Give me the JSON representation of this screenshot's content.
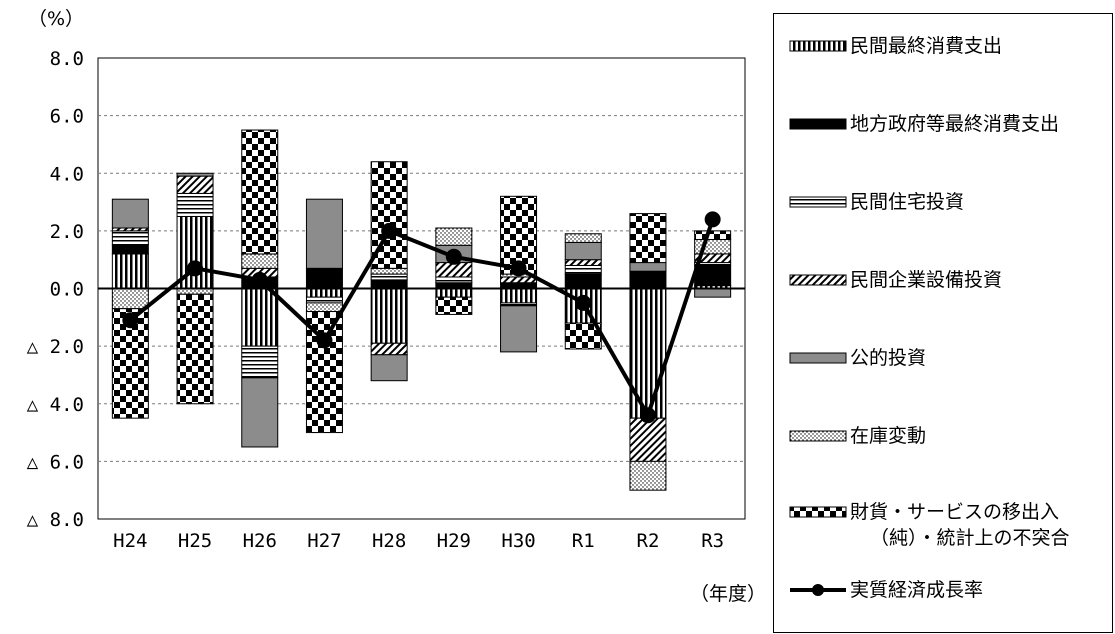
{
  "chart_data": {
    "type": "bar",
    "stacked": true,
    "with_line": true,
    "y_unit": "（%）",
    "x_unit": "（年度）",
    "ylim": [
      -8.0,
      8.0
    ],
    "yticks": [
      {
        "value": 8.0,
        "label": "8.0"
      },
      {
        "value": 6.0,
        "label": "6.0"
      },
      {
        "value": 4.0,
        "label": "4.0"
      },
      {
        "value": 2.0,
        "label": "2.0"
      },
      {
        "value": 0.0,
        "label": "0.0"
      },
      {
        "value": -2.0,
        "label": "△ 2.0"
      },
      {
        "value": -4.0,
        "label": "△ 4.0"
      },
      {
        "value": -6.0,
        "label": "△ 6.0"
      },
      {
        "value": -8.0,
        "label": "△ 8.0"
      }
    ],
    "grid": true,
    "legend_position": "right",
    "categories": [
      "H24",
      "H25",
      "H26",
      "H27",
      "H28",
      "H29",
      "H30",
      "R1",
      "R2",
      "R3"
    ],
    "series": [
      {
        "name": "民間最終消費支出",
        "pattern": "vstripe",
        "values": [
          1.2,
          2.5,
          -2.0,
          -0.3,
          -1.9,
          -0.3,
          -0.5,
          -1.2,
          -4.5,
          0.1
        ]
      },
      {
        "name": "地方政府等最終消費支出",
        "pattern": "solid-black",
        "values": [
          0.3,
          0.0,
          0.4,
          0.7,
          0.3,
          0.2,
          0.2,
          0.5,
          0.6,
          0.7
        ]
      },
      {
        "name": "民間住宅投資",
        "pattern": "hstripe",
        "values": [
          0.5,
          0.8,
          -1.1,
          -0.2,
          0.2,
          0.2,
          -0.1,
          0.3,
          0.0,
          0.1
        ]
      },
      {
        "name": "民間企業設備投資",
        "pattern": "diag",
        "values": [
          0.1,
          0.6,
          0.3,
          0.0,
          -0.4,
          0.5,
          0.2,
          0.2,
          -1.5,
          0.3
        ]
      },
      {
        "name": "公的投資",
        "pattern": "gray",
        "values": [
          1.0,
          0.1,
          -2.4,
          2.4,
          -0.9,
          0.6,
          -1.6,
          0.6,
          0.3,
          -0.3
        ]
      },
      {
        "name": "在庫変動",
        "pattern": "dots",
        "values": [
          -0.7,
          -0.2,
          0.5,
          -0.3,
          0.2,
          0.6,
          0.1,
          0.3,
          -1.0,
          0.5
        ]
      },
      {
        "name": "財貨・サービスの移出入（純）・統計上の不突合",
        "pattern": "checker",
        "values": [
          -3.8,
          -3.8,
          4.3,
          -4.2,
          3.7,
          -0.6,
          2.7,
          -0.9,
          1.7,
          0.3
        ]
      }
    ],
    "line": {
      "name": "実質経済成長率",
      "values": [
        -1.1,
        0.7,
        0.3,
        -1.8,
        2.0,
        1.1,
        0.7,
        -0.5,
        -4.4,
        2.4
      ]
    }
  },
  "legend": {
    "items": [
      {
        "label": "民間最終消費支出",
        "pattern": "vstripe"
      },
      {
        "label": "地方政府等最終消費支出",
        "pattern": "solid-black"
      },
      {
        "label": "民間住宅投資",
        "pattern": "hstripe"
      },
      {
        "label": "民間企業設備投資",
        "pattern": "diag"
      },
      {
        "label": "公的投資",
        "pattern": "gray"
      },
      {
        "label": "在庫変動",
        "pattern": "dots"
      },
      {
        "label": "財貨・サービスの移出入",
        "label2": "（純）・統計上の不突合",
        "pattern": "checker"
      },
      {
        "label": "実質経済成長率",
        "pattern": "line-marker"
      }
    ]
  }
}
